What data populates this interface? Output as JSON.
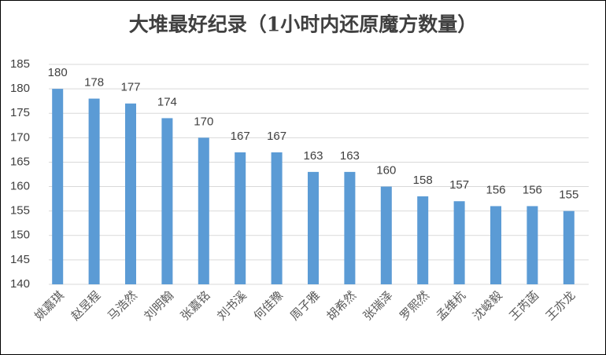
{
  "chart_data": {
    "type": "bar",
    "title": "大堆最好纪录（1小时内还原魔方数量）",
    "categories": [
      "姚嘉琪",
      "赵昱程",
      "马浩然",
      "刘明翰",
      "张嘉铭",
      "刘书溪",
      "何佳豫",
      "周子雅",
      "胡希然",
      "张瑞泽",
      "罗熙然",
      "孟维杭",
      "沈峻毅",
      "王芮菡",
      "王亦龙"
    ],
    "values": [
      180,
      178,
      177,
      174,
      170,
      167,
      167,
      163,
      163,
      160,
      158,
      157,
      156,
      156,
      155
    ],
    "color": "#5b9bd5",
    "ylim": [
      140,
      185
    ],
    "yticks": [
      140,
      145,
      150,
      155,
      160,
      165,
      170,
      175,
      180,
      185
    ],
    "grid": true
  }
}
